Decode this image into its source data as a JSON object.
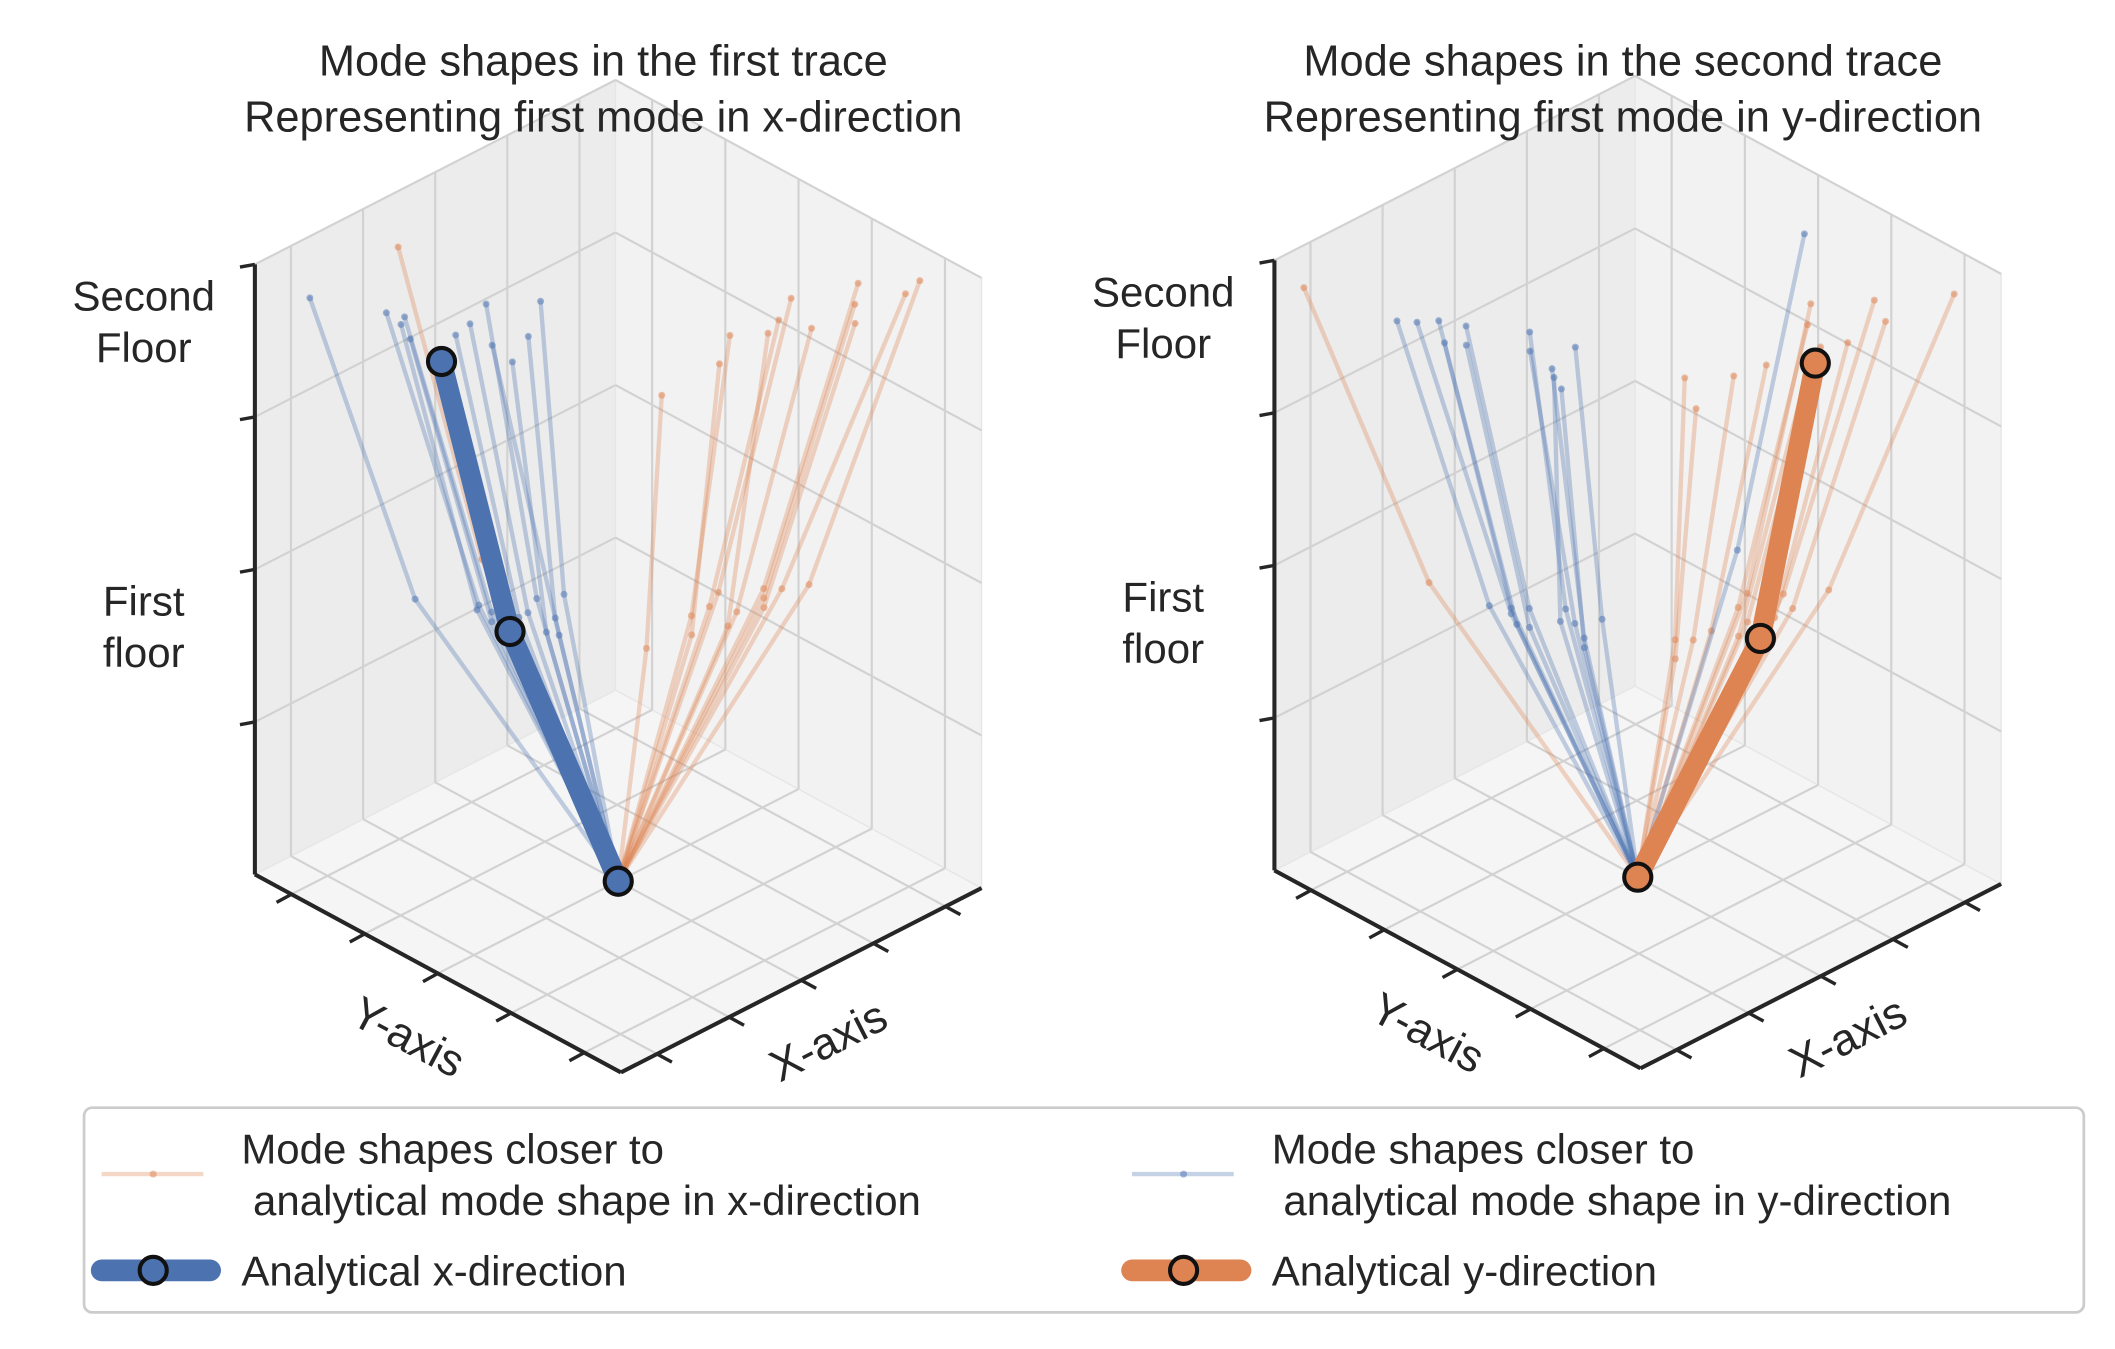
{
  "chart_data": [
    {
      "type": "line3d",
      "title": "Mode shapes in the first trace\nRepresenting first mode in x-direction",
      "xlabel": "X-axis",
      "ylabel": "Y-axis",
      "xlim": [
        -1,
        1
      ],
      "ylim": [
        -1,
        1
      ],
      "zlim": [
        0,
        2
      ],
      "xticks": [
        -0.8,
        -0.4,
        0,
        0.4,
        0.8
      ],
      "yticks": [
        -0.8,
        -0.4,
        0,
        0.4,
        0.8
      ],
      "zticks": [
        0.5,
        {
          "value": 1,
          "label": "First\nfloor"
        },
        1.5,
        {
          "value": 2,
          "label": "Second\nFloor"
        }
      ],
      "tick_labels": false,
      "grid": true,
      "z": [
        1,
        2
      ],
      "series": [
        {
          "color": "#dd8452",
          "style": "thin",
          "modes": [
            {
              "x": [
                0.5,
                0.81
              ],
              "y": [
                -0.55,
                -0.85
              ]
            },
            {
              "x": [
                0.15,
                0.25
              ],
              "y": [
                -0.5,
                -0.81
              ]
            },
            {
              "x": [
                -0.3,
                -0.53
              ],
              "y": [
                -0.45,
                -0.76
              ]
            },
            {
              "x": [
                0.0,
                -0.02
              ],
              "y": [
                -0.4,
                -0.63
              ]
            },
            {
              "x": [
                0.3,
                0.5
              ],
              "y": [
                -0.5,
                -0.8
              ]
            },
            {
              "x": [
                0.35,
                0.62
              ],
              "y": [
                -0.45,
                -0.7
              ]
            },
            {
              "x": [
                0.1,
                0.2
              ],
              "y": [
                -0.4,
                -0.68
              ]
            },
            {
              "x": [
                -0.1,
                -0.2
              ],
              "y": [
                -0.5,
                -0.75
              ]
            },
            {
              "x": [
                0.25,
                0.4
              ],
              "y": [
                -0.55,
                -0.9
              ]
            },
            {
              "x": [
                0.4,
                0.7
              ],
              "y": [
                -0.5,
                -0.88
              ]
            },
            {
              "x": [
                -0.3,
                -0.5
              ],
              "y": [
                0.45,
                0.71
              ]
            },
            {
              "x": [
                0.2,
                0.35
              ],
              "y": [
                -0.35,
                -0.6
              ]
            },
            {
              "x": [
                0.05,
                0.1
              ],
              "y": [
                -0.55,
                -0.72
              ]
            }
          ]
        },
        {
          "color": "#4c72b0",
          "style": "thin",
          "modes": [
            {
              "x": [
                -0.7,
                -1.02
              ],
              "y": [
                0.42,
                0.68
              ]
            },
            {
              "x": [
                -0.55,
                -0.85
              ],
              "y": [
                0.15,
                0.33
              ]
            },
            {
              "x": [
                -0.5,
                -0.78
              ],
              "y": [
                -0.1,
                -0.19
              ]
            },
            {
              "x": [
                -0.25,
                -0.38
              ],
              "y": [
                0.05,
                0.05
              ]
            },
            {
              "x": [
                -0.6,
                -0.95
              ],
              "y": [
                0.1,
                0.2
              ]
            },
            {
              "x": [
                -0.58,
                -0.9
              ],
              "y": [
                0.2,
                0.3
              ]
            },
            {
              "x": [
                -0.5,
                -0.8
              ],
              "y": [
                0.05,
                0.1
              ]
            },
            {
              "x": [
                -0.45,
                -0.7
              ],
              "y": [
                0.05,
                0.12
              ]
            },
            {
              "x": [
                -0.62,
                -0.92
              ],
              "y": [
                0.0,
                0.05
              ]
            },
            {
              "x": [
                -0.4,
                -0.6
              ],
              "y": [
                -0.05,
                -0.1
              ]
            },
            {
              "x": [
                -0.55,
                -0.88
              ],
              "y": [
                0.22,
                0.4
              ]
            },
            {
              "x": [
                -0.35,
                -0.55
              ],
              "y": [
                0.1,
                0.18
              ]
            },
            {
              "x": [
                -0.48,
                -0.75
              ],
              "y": [
                -0.15,
                -0.05
              ]
            }
          ]
        },
        {
          "color": "#4c72b0",
          "style": "analytical",
          "modes": [
            {
              "x": [
                -0.6,
                -0.98
              ],
              "y": [
                0,
                0
              ]
            }
          ]
        }
      ]
    },
    {
      "type": "line3d",
      "title": "Mode shapes in the second trace\nRepresenting first mode in y-direction",
      "xlabel": "X-axis",
      "ylabel": "Y-axis",
      "xlim": [
        -1,
        1
      ],
      "ylim": [
        -1,
        1
      ],
      "zlim": [
        0,
        2
      ],
      "xticks": [
        -0.8,
        -0.4,
        0,
        0.4,
        0.8
      ],
      "yticks": [
        -0.8,
        -0.4,
        0,
        0.4,
        0.8
      ],
      "zticks": [
        0.5,
        {
          "value": 1,
          "label": "First\nfloor"
        },
        1.5,
        {
          "value": 2,
          "label": "Second\nFloor"
        }
      ],
      "tick_labels": false,
      "grid": true,
      "z": [
        1,
        2
      ],
      "series": [
        {
          "color": "#dd8452",
          "style": "thin",
          "modes": [
            {
              "x": [
                -0.65,
                -1.06
              ],
              "y": [
                0.5,
                0.78
              ]
            },
            {
              "x": [
                0.45,
                0.76
              ],
              "y": [
                -0.6,
                -0.98
              ]
            },
            {
              "x": [
                0.25,
                0.42
              ],
              "y": [
                -0.6,
                -0.94
              ]
            },
            {
              "x": [
                -0.35,
                -0.58
              ],
              "y": [
                -0.55,
                -0.89
              ]
            },
            {
              "x": [
                0.05,
                0.1
              ],
              "y": [
                -0.55,
                -0.9
              ]
            },
            {
              "x": [
                -0.1,
                -0.15
              ],
              "y": [
                -0.5,
                -0.85
              ]
            },
            {
              "x": [
                0.15,
                0.2
              ],
              "y": [
                -0.6,
                -0.95
              ]
            },
            {
              "x": [
                -0.2,
                -0.3
              ],
              "y": [
                -0.5,
                -0.82
              ]
            },
            {
              "x": [
                0.1,
                0.18
              ],
              "y": [
                -0.45,
                -0.75
              ]
            },
            {
              "x": [
                -0.05,
                -0.05
              ],
              "y": [
                -0.6,
                -0.98
              ]
            },
            {
              "x": [
                0.3,
                0.5
              ],
              "y": [
                -0.5,
                -0.8
              ]
            },
            {
              "x": [
                -0.25,
                -0.45
              ],
              "y": [
                -0.45,
                -0.7
              ]
            },
            {
              "x": [
                0.2,
                0.3
              ],
              "y": [
                -0.4,
                -0.65
              ]
            }
          ]
        },
        {
          "color": "#4c72b0",
          "style": "thin",
          "modes": [
            {
              "x": [
                -0.6,
                -0.97
              ],
              "y": [
                0.22,
                0.36
              ]
            },
            {
              "x": [
                -0.55,
                -0.86
              ],
              "y": [
                -0.25,
                -0.43
              ]
            },
            {
              "x": [
                0.4,
                0.65
              ],
              "y": [
                -0.15,
                -0.27
              ]
            },
            {
              "x": [
                -0.5,
                -0.8
              ],
              "y": [
                0.1,
                0.15
              ]
            },
            {
              "x": [
                -0.6,
                -0.9
              ],
              "y": [
                0.0,
                0.05
              ]
            },
            {
              "x": [
                -0.45,
                -0.75
              ],
              "y": [
                -0.1,
                -0.15
              ]
            },
            {
              "x": [
                -0.55,
                -0.85
              ],
              "y": [
                0.15,
                0.25
              ]
            },
            {
              "x": [
                -0.5,
                -0.78
              ],
              "y": [
                -0.2,
                -0.3
              ]
            },
            {
              "x": [
                -0.62,
                -0.95
              ],
              "y": [
                0.05,
                0.12
              ]
            },
            {
              "x": [
                -0.4,
                -0.65
              ],
              "y": [
                0.0,
                -0.05
              ]
            },
            {
              "x": [
                -0.48,
                -0.82
              ],
              "y": [
                -0.05,
                -0.35
              ]
            },
            {
              "x": [
                -0.58,
                -0.92
              ],
              "y": [
                0.12,
                0.3
              ]
            },
            {
              "x": [
                -0.35,
                -0.6
              ],
              "y": [
                -0.15,
                -0.25
              ]
            }
          ]
        },
        {
          "color": "#dd8452",
          "style": "analytical",
          "modes": [
            {
              "x": [
                0,
                0
              ],
              "y": [
                -0.67,
                -0.97
              ]
            }
          ]
        }
      ]
    }
  ],
  "legend": {
    "entries": [
      {
        "name": "Mode shapes closer to\n analytical mode shape in x-direction",
        "color": "#dd8452",
        "style": "thin"
      },
      {
        "name": "Mode shapes closer to\n analytical mode shape in y-direction",
        "color": "#4c72b0",
        "style": "thin"
      },
      {
        "name": "Analytical x-direction",
        "color": "#4c72b0",
        "style": "analytical"
      },
      {
        "name": "Analytical y-direction",
        "color": "#dd8452",
        "style": "analytical"
      }
    ]
  }
}
